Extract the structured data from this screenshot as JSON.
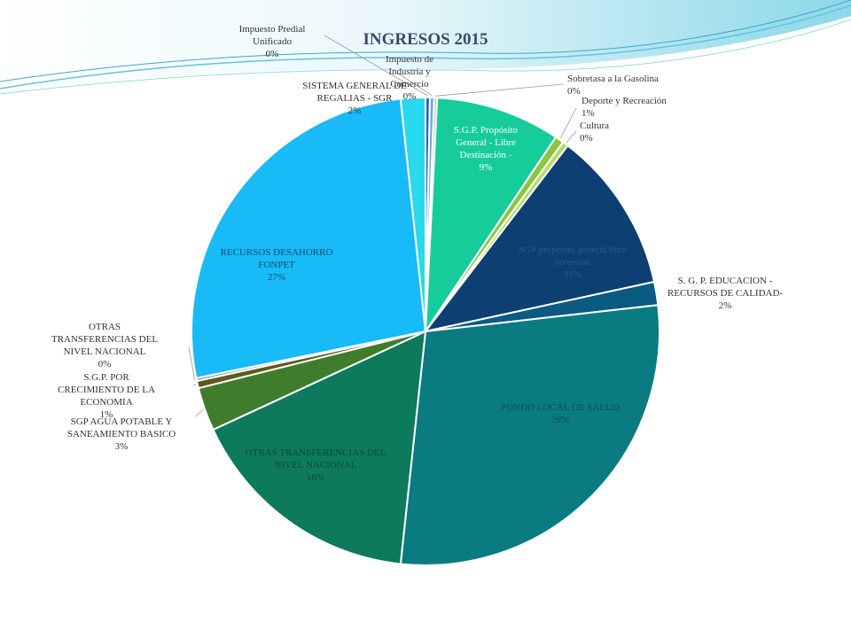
{
  "chart_data": {
    "type": "pie",
    "title": "INGRESOS 2015",
    "slices": [
      {
        "name": "Impuesto Predial Unificado",
        "value": 0.3,
        "pct_label": "0%",
        "color": "#2e5fa3"
      },
      {
        "name": "Impuesto de Industria y Comercio",
        "value": 0.3,
        "pct_label": "0%",
        "color": "#6fa8dc"
      },
      {
        "name": "Sobretasa a la Gasolina",
        "value": 0.2,
        "pct_label": "0%",
        "color": "#a9d08e"
      },
      {
        "name": "S.G.P. Propósito General - Libre Destinación -",
        "value": 8.6,
        "pct_label": "9%",
        "color": "#16cc9b"
      },
      {
        "name": "Deporte y Recreación",
        "value": 0.6,
        "pct_label": "1%",
        "color": "#8cc63f"
      },
      {
        "name": "Cultura",
        "value": 0.4,
        "pct_label": "0%",
        "color": "#b5dc6a"
      },
      {
        "name": "SGP propósito general libre inversión",
        "value": 11.2,
        "pct_label": "11%",
        "color": "#0d3f73"
      },
      {
        "name": "S. G. P. EDUCACION - RECURSOS DE CALIDAD-",
        "value": 1.6,
        "pct_label": "2%",
        "color": "#0b5a82"
      },
      {
        "name": "FONDO LOCAL DE SALUD",
        "value": 28.5,
        "pct_label": "28%",
        "color": "#0b7b82"
      },
      {
        "name": "OTRAS TRANSFERENCIAS DEL NIVEL NACIONAL",
        "value": 16.4,
        "pct_label": "16%",
        "color": "#0d7a5c"
      },
      {
        "name": "SGP AGUA POTABLE Y SANEAMIENTO BASICO",
        "value": 3.0,
        "pct_label": "3%",
        "color": "#3f7d2c"
      },
      {
        "name": "S.G.P. POR CRECIMIENTO DE LA ECONOMIA",
        "value": 0.5,
        "pct_label": "1%",
        "color": "#5c5a1e"
      },
      {
        "name": "OTRAS TRANSFERENCIAS DEL NIVEL NACIONAL",
        "value": 0.2,
        "pct_label": "0%",
        "color": "#8a8a8a"
      },
      {
        "name": "RECURSOS DESAHORRO FONPET",
        "value": 26.5,
        "pct_label": "27%",
        "color": "#18baf7"
      },
      {
        "name": "SISTEMA GENERAL DE REGALIAS - SGR",
        "value": 1.7,
        "pct_label": "2%",
        "color": "#29d9ee"
      }
    ],
    "label_lines": [
      [
        "Impuesto Predial",
        "Unificado",
        "0%"
      ],
      [
        "Impuesto de",
        "Industria y",
        "Comercio",
        "0%"
      ],
      [
        "Sobretasa a la Gasolina",
        "0%"
      ],
      [
        "S.G.P. Propósito",
        "General - Libre",
        "Destinación -",
        "9%"
      ],
      [
        "Deporte  y Recreación",
        "1%"
      ],
      [
        "Cultura",
        "0%"
      ],
      [
        "SGP propósito general libre",
        "inversión",
        "11%"
      ],
      [
        "S. G. P. EDUCACION -",
        "RECURSOS DE CALIDAD-",
        "2%"
      ],
      [
        "FONDO LOCAL DE SALUD",
        "28%"
      ],
      [
        "OTRAS TRANSFERENCIAS DEL",
        "NIVEL NACIONAL",
        "16%"
      ],
      [
        "SGP AGUA POTABLE Y",
        "SANEAMIENTO BASICO",
        "3%"
      ],
      [
        "S.G.P. POR",
        "CRECIMIENTO DE LA",
        "ECONOMIA",
        "1%"
      ],
      [
        "OTRAS",
        "TRANSFERENCIAS DEL",
        "NIVEL NACIONAL",
        "0%"
      ],
      [
        "RECURSOS DESAHORRO",
        "FONPET",
        "27%"
      ],
      [
        "SISTEMA GENERAL DE",
        "REGALIAS - SGR",
        "2%"
      ]
    ],
    "legend": "none"
  }
}
